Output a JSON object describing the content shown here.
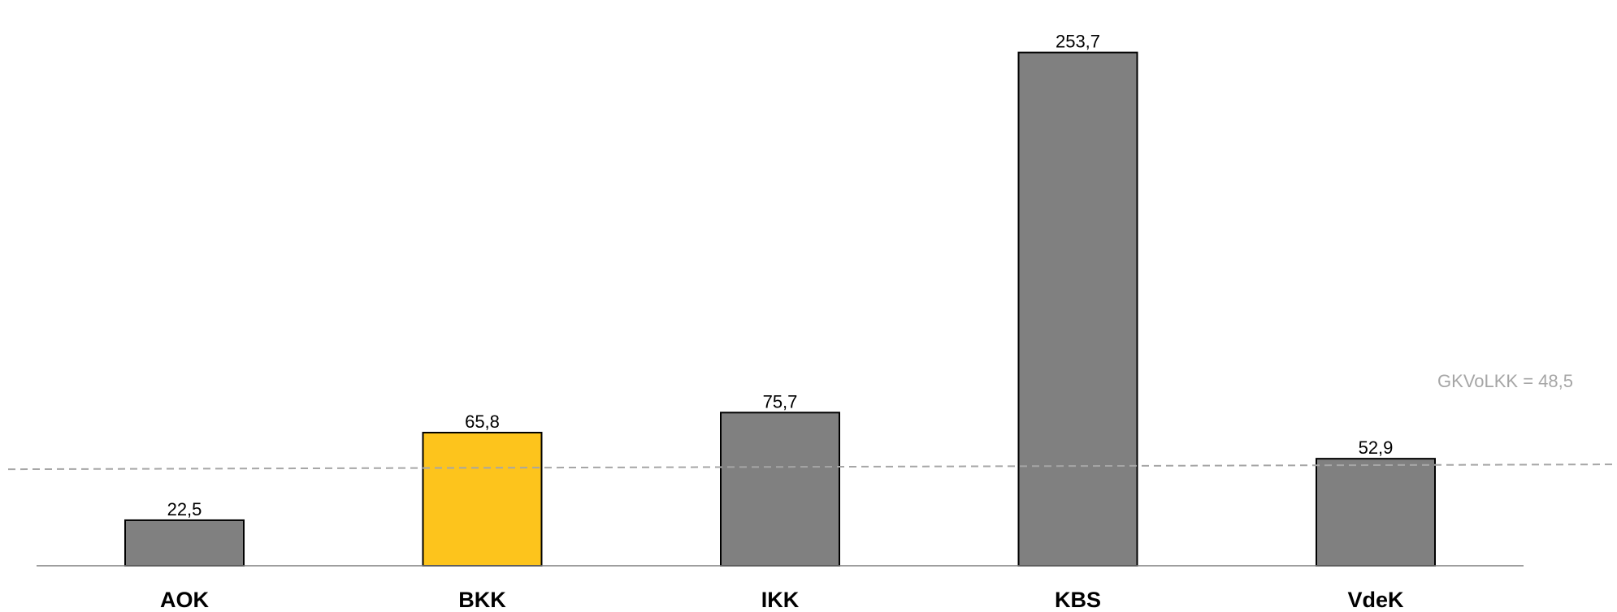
{
  "chart_data": {
    "type": "bar",
    "categories": [
      "AOK",
      "BKK",
      "IKK",
      "KBS",
      "VdeK"
    ],
    "values": [
      22.5,
      65.8,
      75.7,
      253.7,
      52.9
    ],
    "value_labels": [
      "22,5",
      "65,8",
      "75,7",
      "253,7",
      "52,9"
    ],
    "highlight_category": "BKK",
    "colors": {
      "bar": "#808080",
      "highlight": "#fdc41c",
      "bar_outline": "#000000",
      "reference_line": "#a6a6a6",
      "axis": "#7f7f7f"
    },
    "reference_line": {
      "label": "GKVoLKK =  48,5",
      "value": 48.5
    },
    "ylim": [
      0,
      266
    ],
    "grid": false,
    "legend": "none",
    "title": "",
    "xlabel": "",
    "ylabel": ""
  }
}
